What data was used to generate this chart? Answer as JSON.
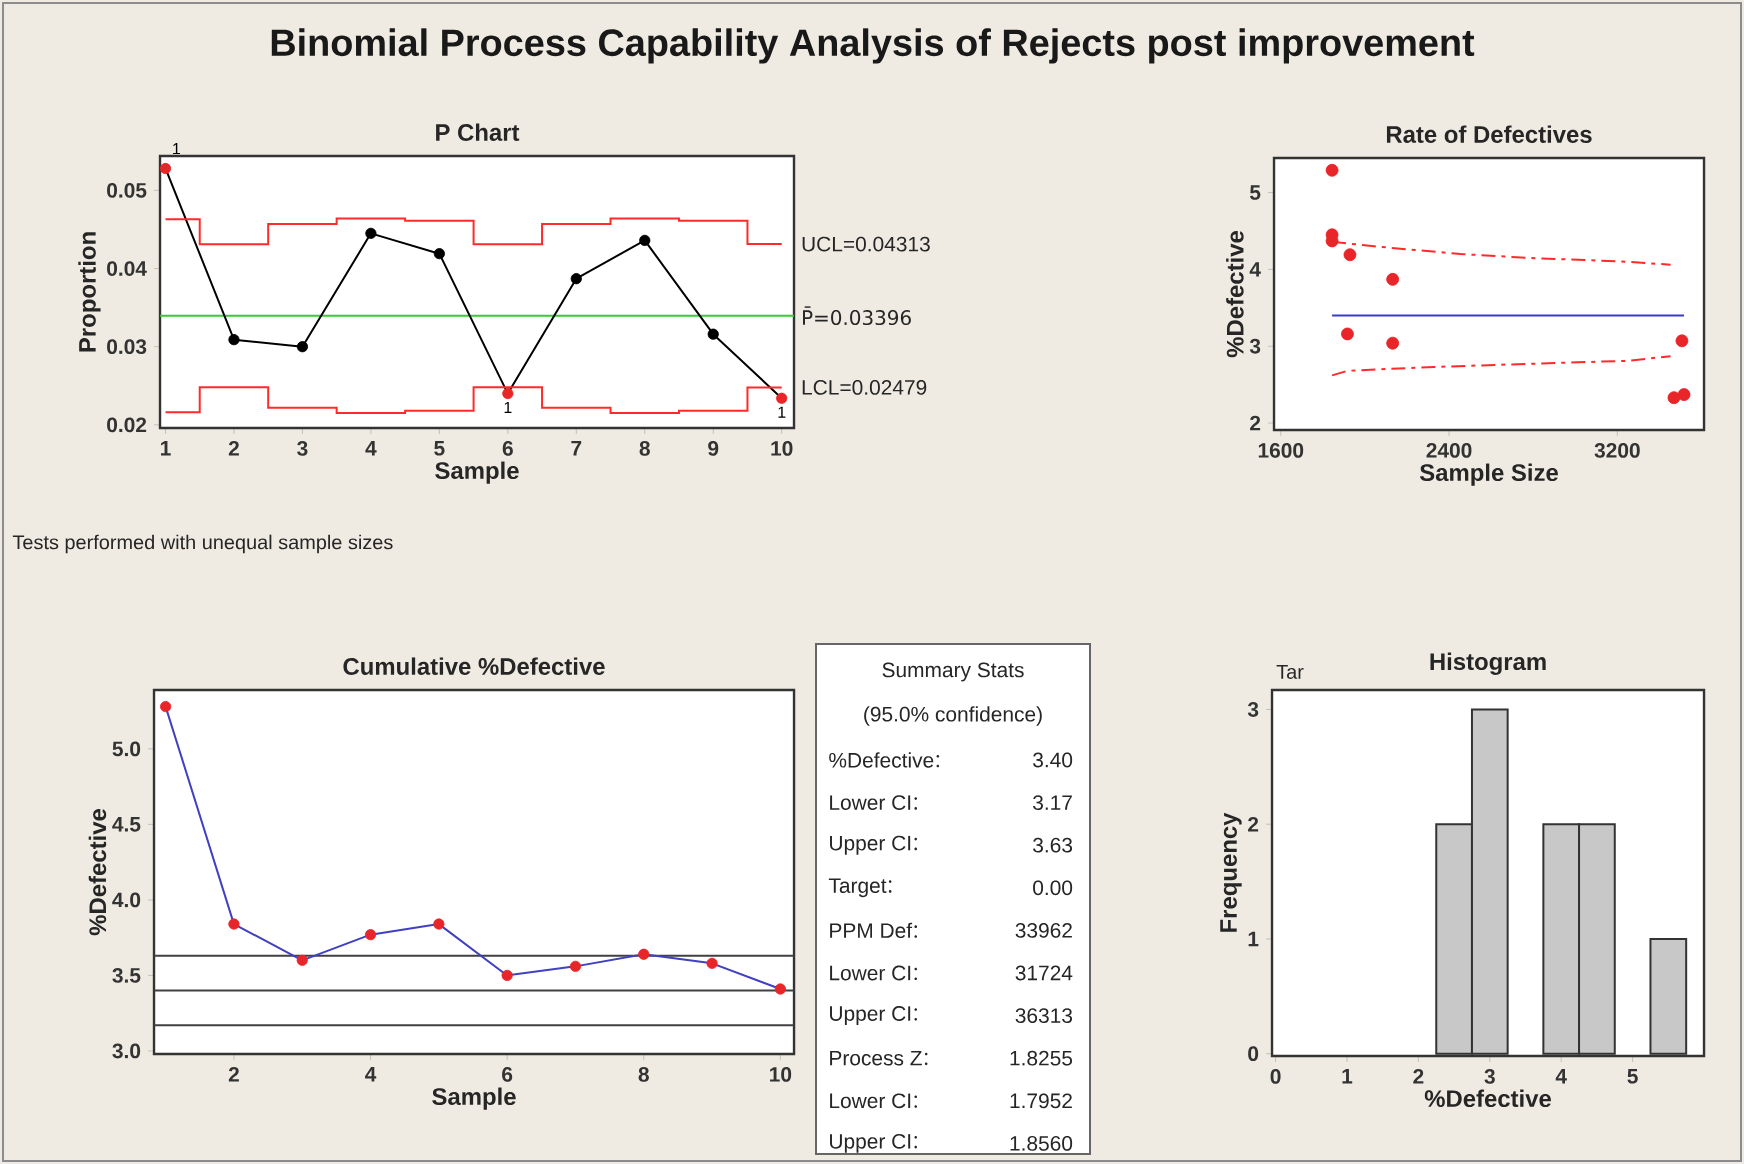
{
  "chart_data": [
    {
      "type": "other",
      "title": "Binomial Process Capability Analysis of Rejects post improvement"
    },
    {
      "type": "line",
      "title": "P Chart",
      "xlabel": "Sample",
      "ylabel": "Proportion",
      "xlim": [
        0.92,
        10.18
      ],
      "ylim": [
        0.0196,
        0.0544
      ],
      "xticks": [
        1,
        2,
        3,
        4,
        5,
        6,
        7,
        8,
        9,
        10
      ],
      "yticks": [
        0.02,
        0.03,
        0.04,
        0.05
      ],
      "x": [
        1,
        2,
        3,
        4,
        5,
        6,
        7,
        8,
        9,
        10
      ],
      "series": [
        {
          "marker": "circle",
          "color": "#000000",
          "colors": [
            "#e8262a",
            "#000000",
            "#000000",
            "#000000",
            "#000000",
            "#e8262a",
            "#000000",
            "#000000",
            "#000000",
            "#e8262a"
          ],
          "values": [
            0.0528,
            0.0309,
            0.03,
            0.0445,
            0.0419,
            0.024,
            0.0387,
            0.0436,
            0.0316,
            0.0234
          ]
        },
        {
          "type": "step",
          "name": "UCL=0.04313",
          "color": "#ff2a2a",
          "values": [
            0.0463,
            0.0431,
            0.0457,
            0.0464,
            0.0461,
            0.0431,
            0.0457,
            0.0464,
            0.0461,
            0.04313
          ]
        },
        {
          "type": "step",
          "name": "LCL=0.02479",
          "color": "#ff2a2a",
          "values": [
            0.0216,
            0.0248,
            0.0222,
            0.0215,
            0.0218,
            0.0248,
            0.0222,
            0.0215,
            0.0218,
            0.02479
          ]
        }
      ],
      "ref_lines": [
        {
          "axis": "y",
          "value": 0.03396,
          "label": "P̄=0.03396",
          "color": "#33cc33"
        }
      ],
      "annotations": [
        {
          "text": "1",
          "x": 1,
          "y": 0.0528
        },
        {
          "text": "1",
          "x": 6,
          "y": 0.024
        },
        {
          "text": "1",
          "x": 10,
          "y": 0.0234
        },
        "Tests performed with unequal sample sizes"
      ]
    },
    {
      "type": "scatter",
      "title": "Rate of Defectives",
      "xlabel": "Sample Size",
      "ylabel": "%Defective",
      "xlim": [
        1568,
        3612
      ],
      "ylim": [
        1.91,
        5.45
      ],
      "xticks": [
        1600,
        2400,
        3200
      ],
      "yticks": [
        2,
        3,
        4,
        5
      ],
      "series": [
        {
          "marker": "circle",
          "color": "#e8262a",
          "x": [
            1844,
            1844,
            1844,
            1929,
            1917,
            2132,
            2132,
            3507,
            3469,
            3517
          ],
          "values": [
            5.29,
            4.45,
            4.37,
            4.19,
            3.16,
            3.87,
            3.04,
            3.07,
            2.33,
            2.37
          ]
        },
        {
          "type": "line",
          "color": "#3a3acc",
          "x": [
            1844,
            3517
          ],
          "values": [
            3.4,
            3.4
          ]
        },
        {
          "type": "line",
          "line_style": "dashed",
          "color": "#ff2a2a",
          "x": [
            1844,
            2044,
            2455,
            2772,
            3247,
            3453
          ],
          "values": [
            4.36,
            4.3,
            4.2,
            4.15,
            4.1,
            4.06
          ]
        },
        {
          "type": "line",
          "line_style": "dashed",
          "color": "#ff2a2a",
          "x": [
            1844,
            1917,
            2329,
            2772,
            3247,
            3453
          ],
          "values": [
            2.62,
            2.68,
            2.73,
            2.77,
            2.81,
            2.87
          ]
        }
      ]
    },
    {
      "type": "line",
      "title": "Cumulative %Defective",
      "xlabel": "Sample",
      "ylabel": "%Defective",
      "xlim": [
        0.83,
        10.2
      ],
      "ylim": [
        2.98,
        5.39
      ],
      "xticks": [
        2,
        4,
        6,
        8,
        10
      ],
      "yticks": [
        {
          "value": 3,
          "label": "3.0"
        },
        3.5,
        {
          "value": 4,
          "label": "4.0"
        },
        4.5,
        {
          "value": 5,
          "label": "5.0"
        }
      ],
      "marker": "circle",
      "series": [
        {
          "color": "#4040c0",
          "colors": [
            "#e8262a",
            "#e8262a",
            "#e8262a",
            "#e8262a",
            "#e8262a",
            "#e8262a",
            "#e8262a",
            "#e8262a",
            "#e8262a",
            "#e8262a"
          ],
          "x": [
            1,
            2,
            3,
            4,
            5,
            6,
            7,
            8,
            9,
            10
          ],
          "values": [
            5.28,
            3.84,
            3.6,
            3.77,
            3.84,
            3.5,
            3.56,
            3.64,
            3.58,
            3.41
          ]
        }
      ],
      "ref_lines": [
        {
          "axis": "y",
          "value": 3.63,
          "color": "#404040"
        },
        {
          "axis": "y",
          "value": 3.4,
          "color": "#404040"
        },
        {
          "axis": "y",
          "value": 3.17,
          "color": "#404040"
        }
      ]
    },
    {
      "type": "other",
      "title": "Summary Stats",
      "subtitle": "(95.0% confidence)",
      "categories": [
        "%Defective",
        "Lower CI",
        "Upper CI",
        "Target",
        "PPM Def",
        "Lower CI",
        "Upper CI",
        "Process Z",
        "Lower CI",
        "Upper CI"
      ],
      "value_labels": [
        "3.40",
        "3.17",
        "3.63",
        "0.00",
        "33962",
        "31724",
        "36313",
        "1.8255",
        "1.7952",
        "1.8560"
      ]
    },
    {
      "type": "histogram",
      "title": "Histogram",
      "xlabel": "%Defective",
      "ylabel": "Frequency",
      "xlim": [
        -0.05,
        6.0
      ],
      "ylim": [
        -0.02,
        3.17
      ],
      "xticks": [
        0,
        1,
        2,
        3,
        4,
        5
      ],
      "yticks": [
        0,
        1,
        2,
        3
      ],
      "color": "#c8c8c8",
      "bins": [
        2.25,
        2.75,
        3.25,
        3.75,
        4.25,
        4.75,
        5.25,
        5.75
      ],
      "values": [
        2,
        3,
        0,
        2,
        2,
        0,
        1
      ],
      "annotations": [
        "Tar"
      ]
    }
  ]
}
